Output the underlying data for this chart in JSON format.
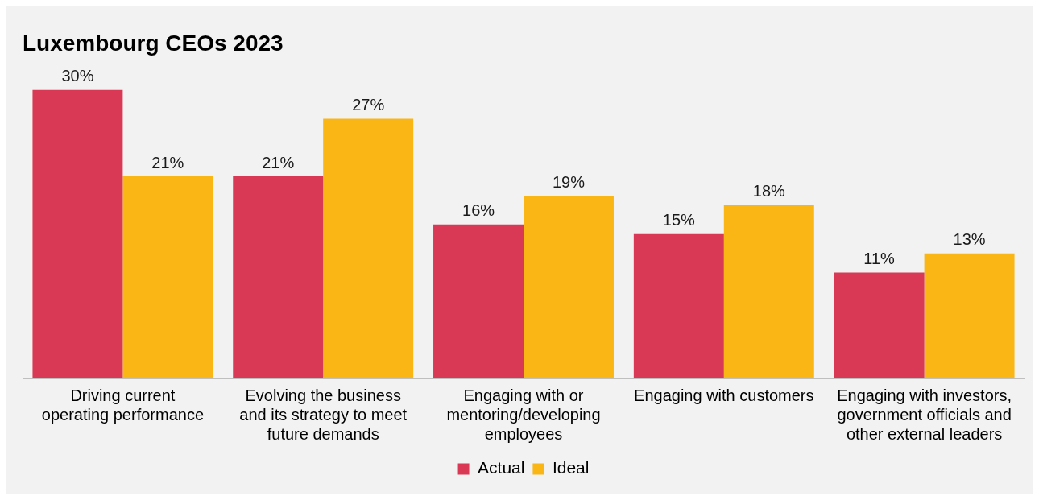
{
  "chart_data": {
    "type": "bar",
    "title": "Luxembourg CEOs 2023",
    "categories": [
      "Driving current operating performance",
      "Evolving the business and its strategy to meet future demands",
      "Engaging with or mentoring/developing employees",
      "Engaging with customers",
      "Engaging with investors, government officials and other external leaders"
    ],
    "series": [
      {
        "name": "Actual",
        "color": "#d93954",
        "values": [
          30,
          21,
          16,
          15,
          11
        ],
        "value_labels": [
          "30%",
          "21%",
          "16%",
          "15%",
          "11%"
        ]
      },
      {
        "name": "Ideal",
        "color": "#f9b614",
        "values": [
          21,
          27,
          19,
          18,
          13
        ],
        "value_labels": [
          "21%",
          "27%",
          "19%",
          "18%",
          "13%"
        ]
      }
    ],
    "legend": "bottom",
    "grid": false
  }
}
